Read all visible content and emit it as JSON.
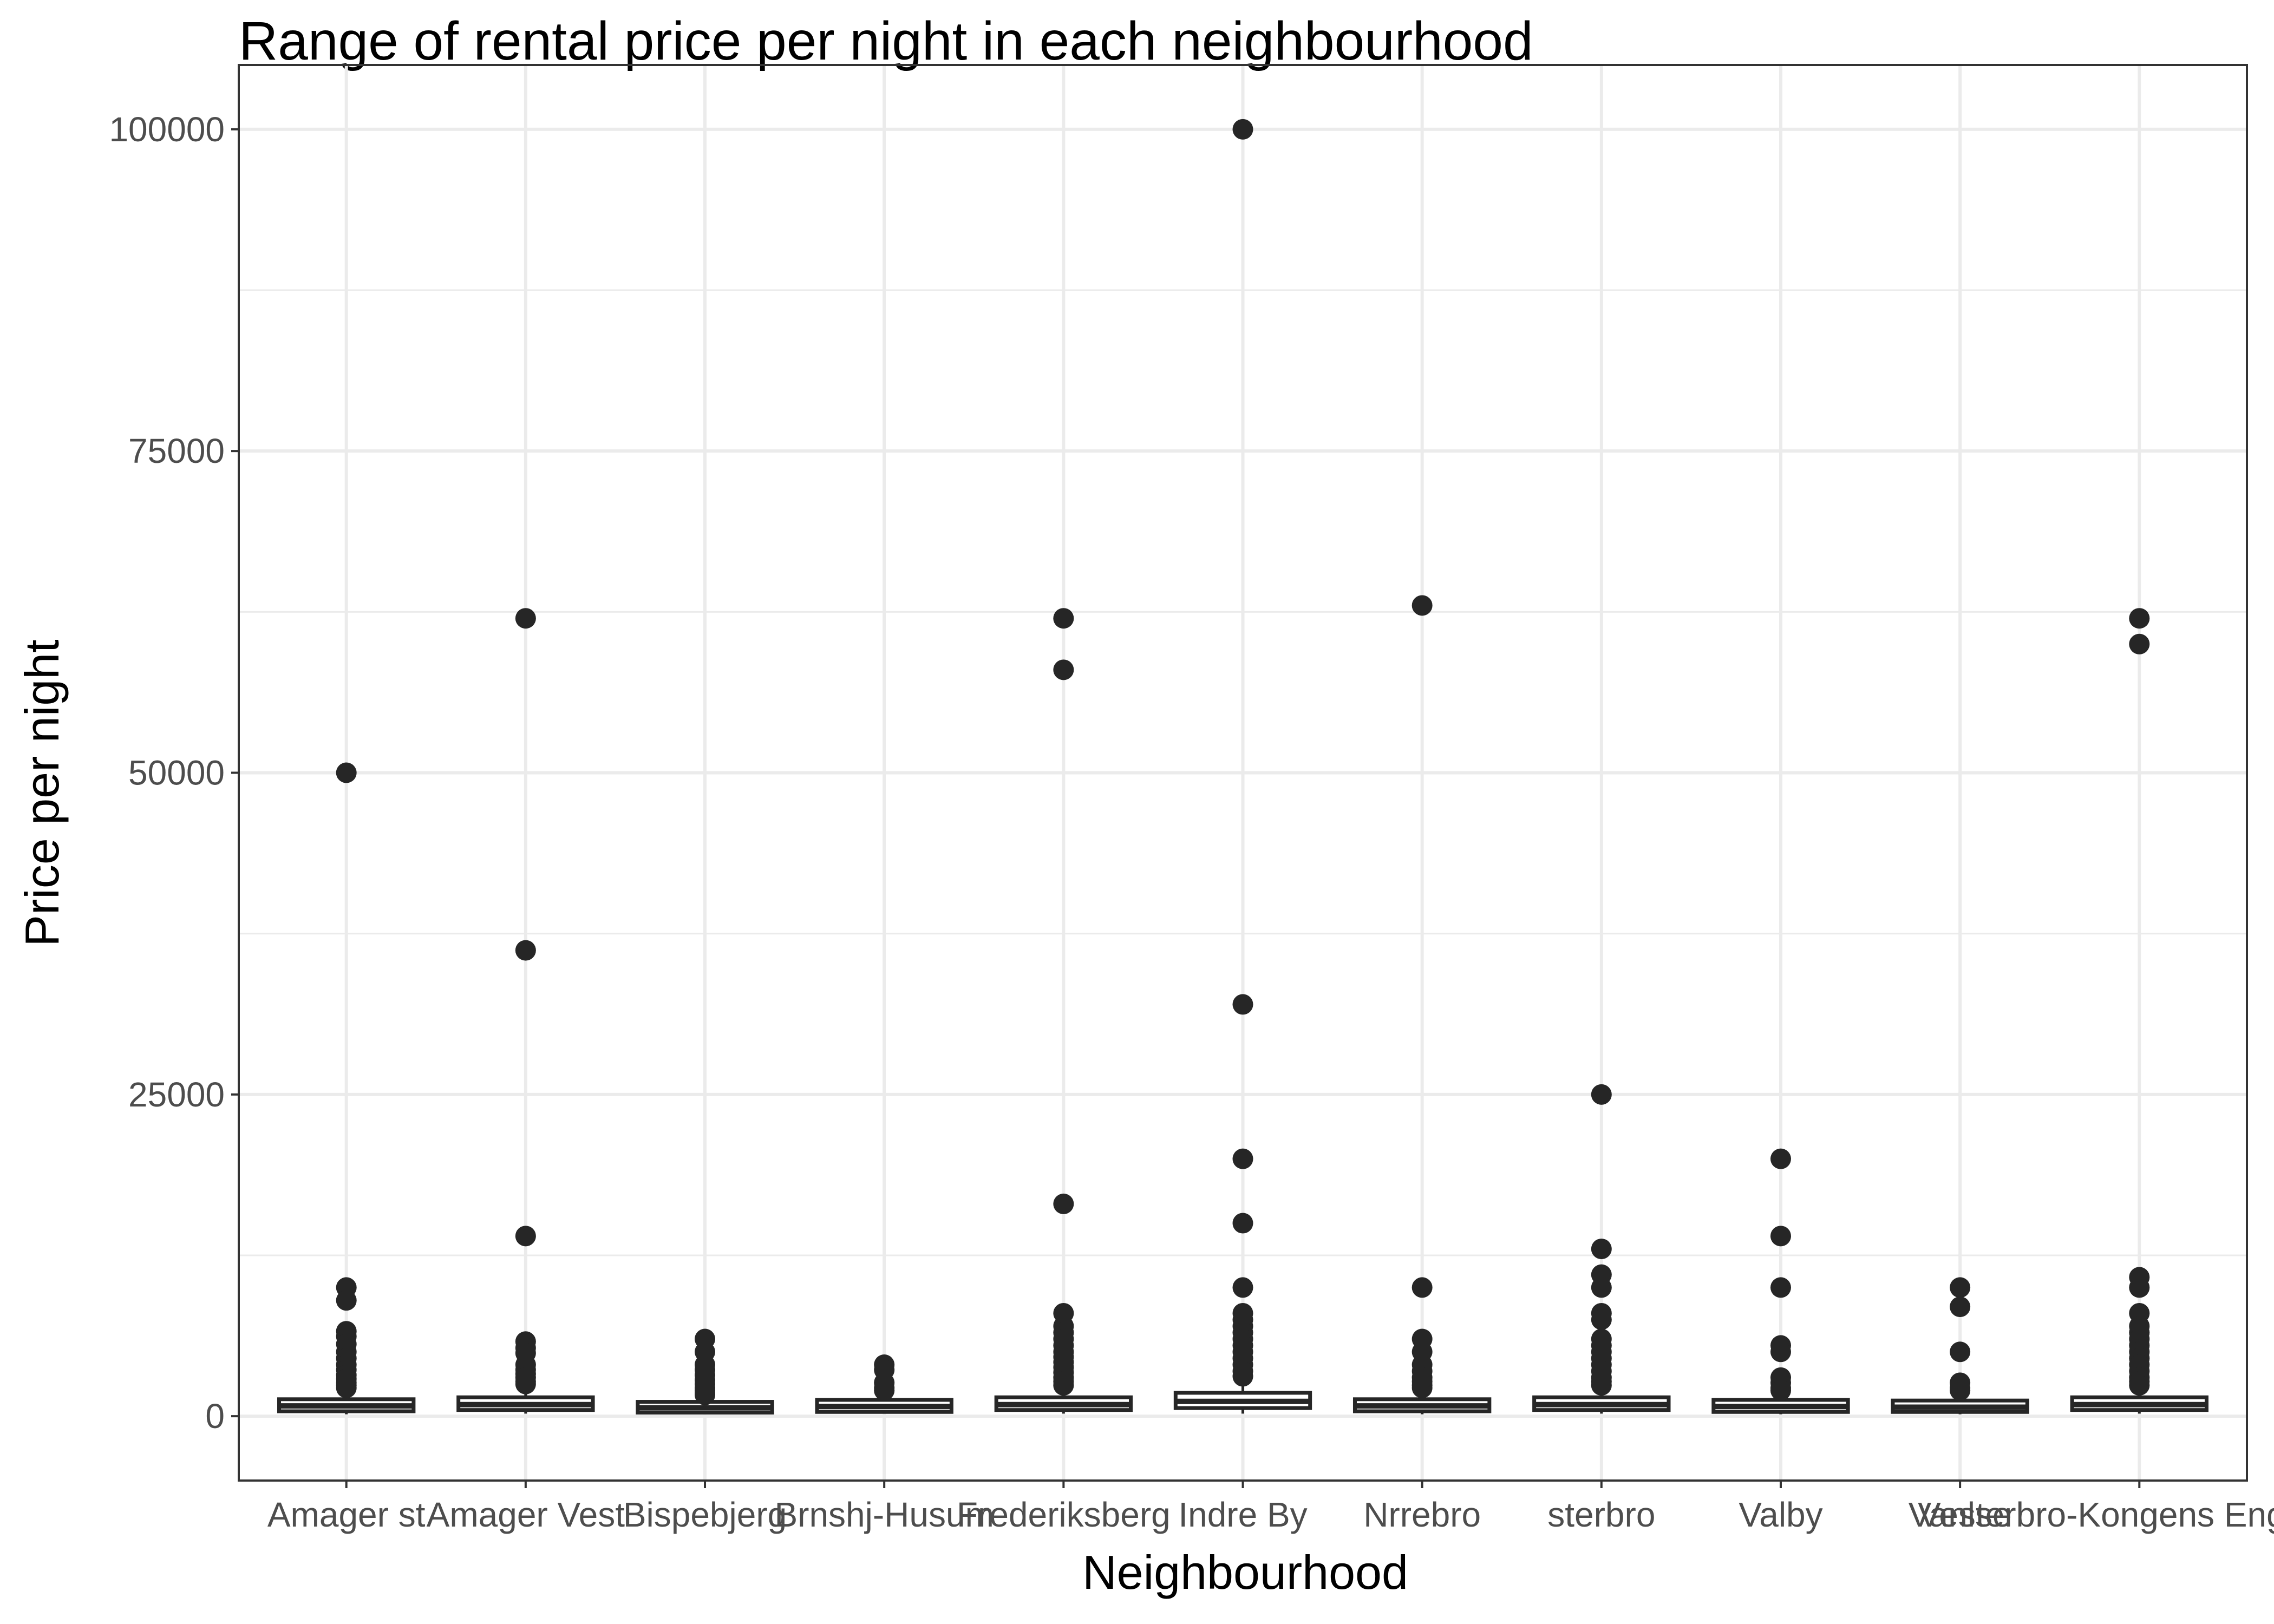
{
  "chart_data": {
    "type": "box",
    "title": "Range of rental price per night in each neighbourhood",
    "xlabel": "Neighbourhood",
    "ylabel": "Price per night",
    "ylim": [
      -5000,
      105000
    ],
    "yticks": [
      0,
      25000,
      50000,
      75000,
      100000
    ],
    "grid": true,
    "theme": "bw",
    "colors": {
      "box": "#262626",
      "grid": "#ebebeb",
      "axis_text": "#4d4d4d",
      "panel_border": "#333333"
    },
    "categories": [
      "Amager st",
      "Amager Vest",
      "Bispebjerg",
      "Brnshj-Husum",
      "Frederiksberg",
      "Indre By",
      "Nrrebro",
      "sterbro",
      "Valby",
      "Vanlse",
      "Vesterbro-Kongens Enghave"
    ],
    "boxes": [
      {
        "q1": 550,
        "median": 800,
        "q3": 1150,
        "whisker_low": 150,
        "whisker_high": 2000,
        "outliers": [
          50000,
          10000,
          9000,
          6600,
          6200,
          5600,
          5000,
          4500,
          4000,
          3600,
          3200,
          2900,
          2600,
          2400,
          2200
        ]
      },
      {
        "q1": 650,
        "median": 900,
        "q3": 1300,
        "whisker_low": 200,
        "whisker_high": 2200,
        "outliers": [
          62000,
          36200,
          14000,
          5800,
          5300,
          4900,
          4000,
          3600,
          3300,
          3000,
          2700,
          2500
        ]
      },
      {
        "q1": 450,
        "median": 650,
        "q3": 950,
        "whisker_low": 150,
        "whisker_high": 1500,
        "outliers": [
          6000,
          5000,
          4000,
          3600,
          3200,
          2800,
          2500,
          2200,
          2000,
          1800,
          1650
        ]
      },
      {
        "q1": 500,
        "median": 750,
        "q3": 1100,
        "whisker_low": 200,
        "whisker_high": 1700,
        "outliers": [
          4000,
          3600,
          2600,
          2200,
          2000
        ]
      },
      {
        "q1": 650,
        "median": 900,
        "q3": 1300,
        "whisker_low": 200,
        "whisker_high": 2200,
        "outliers": [
          62000,
          58000,
          16500,
          8000,
          7000,
          6500,
          6000,
          5500,
          5000,
          4600,
          4200,
          3800,
          3400,
          3000,
          2700,
          2400
        ]
      },
      {
        "q1": 800,
        "median": 1150,
        "q3": 1650,
        "whisker_low": 200,
        "whisker_high": 2900,
        "outliers": [
          100000,
          32000,
          20000,
          15000,
          10000,
          8000,
          7500,
          7000,
          6500,
          6000,
          5500,
          5000,
          4500,
          4000,
          3500,
          3100
        ]
      },
      {
        "q1": 550,
        "median": 800,
        "q3": 1150,
        "whisker_low": 150,
        "whisker_high": 2000,
        "outliers": [
          63000,
          10000,
          6000,
          5000,
          4000,
          3500,
          3000,
          2700,
          2400,
          2200
        ]
      },
      {
        "q1": 650,
        "median": 900,
        "q3": 1300,
        "whisker_low": 200,
        "whisker_high": 2200,
        "outliers": [
          25000,
          13000,
          11000,
          10000,
          8000,
          7500,
          6000,
          5500,
          5000,
          4500,
          4000,
          3500,
          3000,
          2700,
          2400
        ]
      },
      {
        "q1": 500,
        "median": 750,
        "q3": 1100,
        "whisker_low": 150,
        "whisker_high": 1800,
        "outliers": [
          20000,
          14000,
          10000,
          5500,
          5000,
          3000,
          2600,
          2200,
          2000
        ]
      },
      {
        "q1": 500,
        "median": 700,
        "q3": 1050,
        "whisker_low": 150,
        "whisker_high": 1700,
        "outliers": [
          10000,
          8500,
          5000,
          2600,
          2200,
          2000
        ]
      },
      {
        "q1": 650,
        "median": 900,
        "q3": 1300,
        "whisker_low": 200,
        "whisker_high": 2200,
        "outliers": [
          62000,
          60000,
          10800,
          10000,
          8000,
          7000,
          6500,
          6000,
          5500,
          5000,
          4500,
          4000,
          3500,
          3000,
          2700,
          2400
        ]
      }
    ]
  }
}
